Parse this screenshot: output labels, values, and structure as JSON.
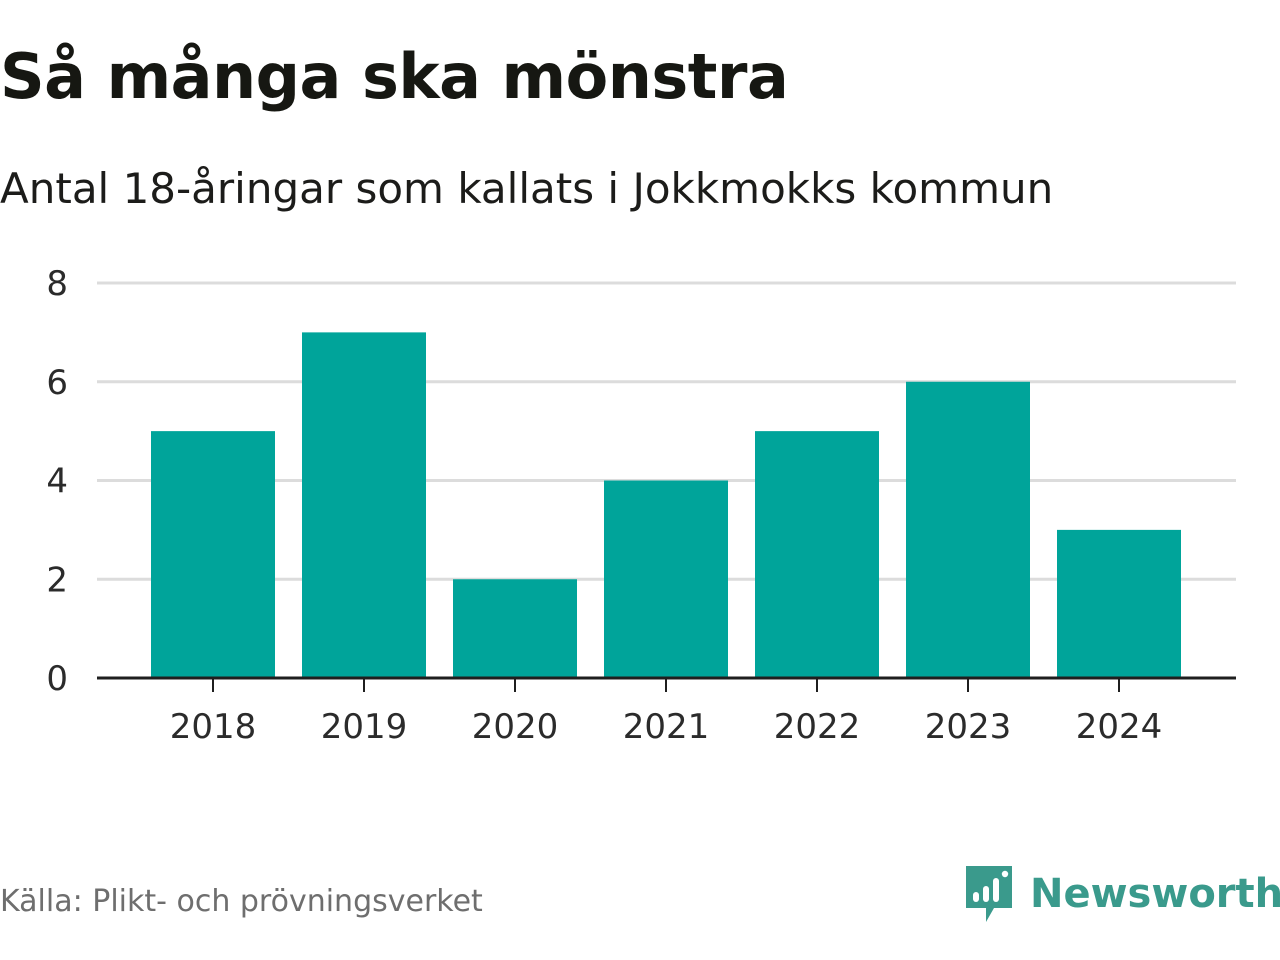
{
  "header": {
    "title": "Så många ska mönstra",
    "subtitle": "Antal 18-åringar som kallats i Jokkmokks kommun"
  },
  "footer": {
    "source": "Källa: Plikt- och prövningsverket",
    "brand": "Newsworthy",
    "brand_icon": "newsworthy-logo-icon"
  },
  "colors": {
    "bar": "#00a49a",
    "grid": "#dcdcdc",
    "axis": "#1f1f1f",
    "brand": "#3a9a8c"
  },
  "chart_data": {
    "type": "bar",
    "categories": [
      "2018",
      "2019",
      "2020",
      "2021",
      "2022",
      "2023",
      "2024"
    ],
    "values": [
      5,
      7,
      2,
      4,
      5,
      6,
      3
    ],
    "ylim": [
      0,
      8
    ],
    "yticks": [
      0,
      2,
      4,
      6,
      8
    ],
    "grid": true,
    "xlabel": "",
    "ylabel": ""
  }
}
